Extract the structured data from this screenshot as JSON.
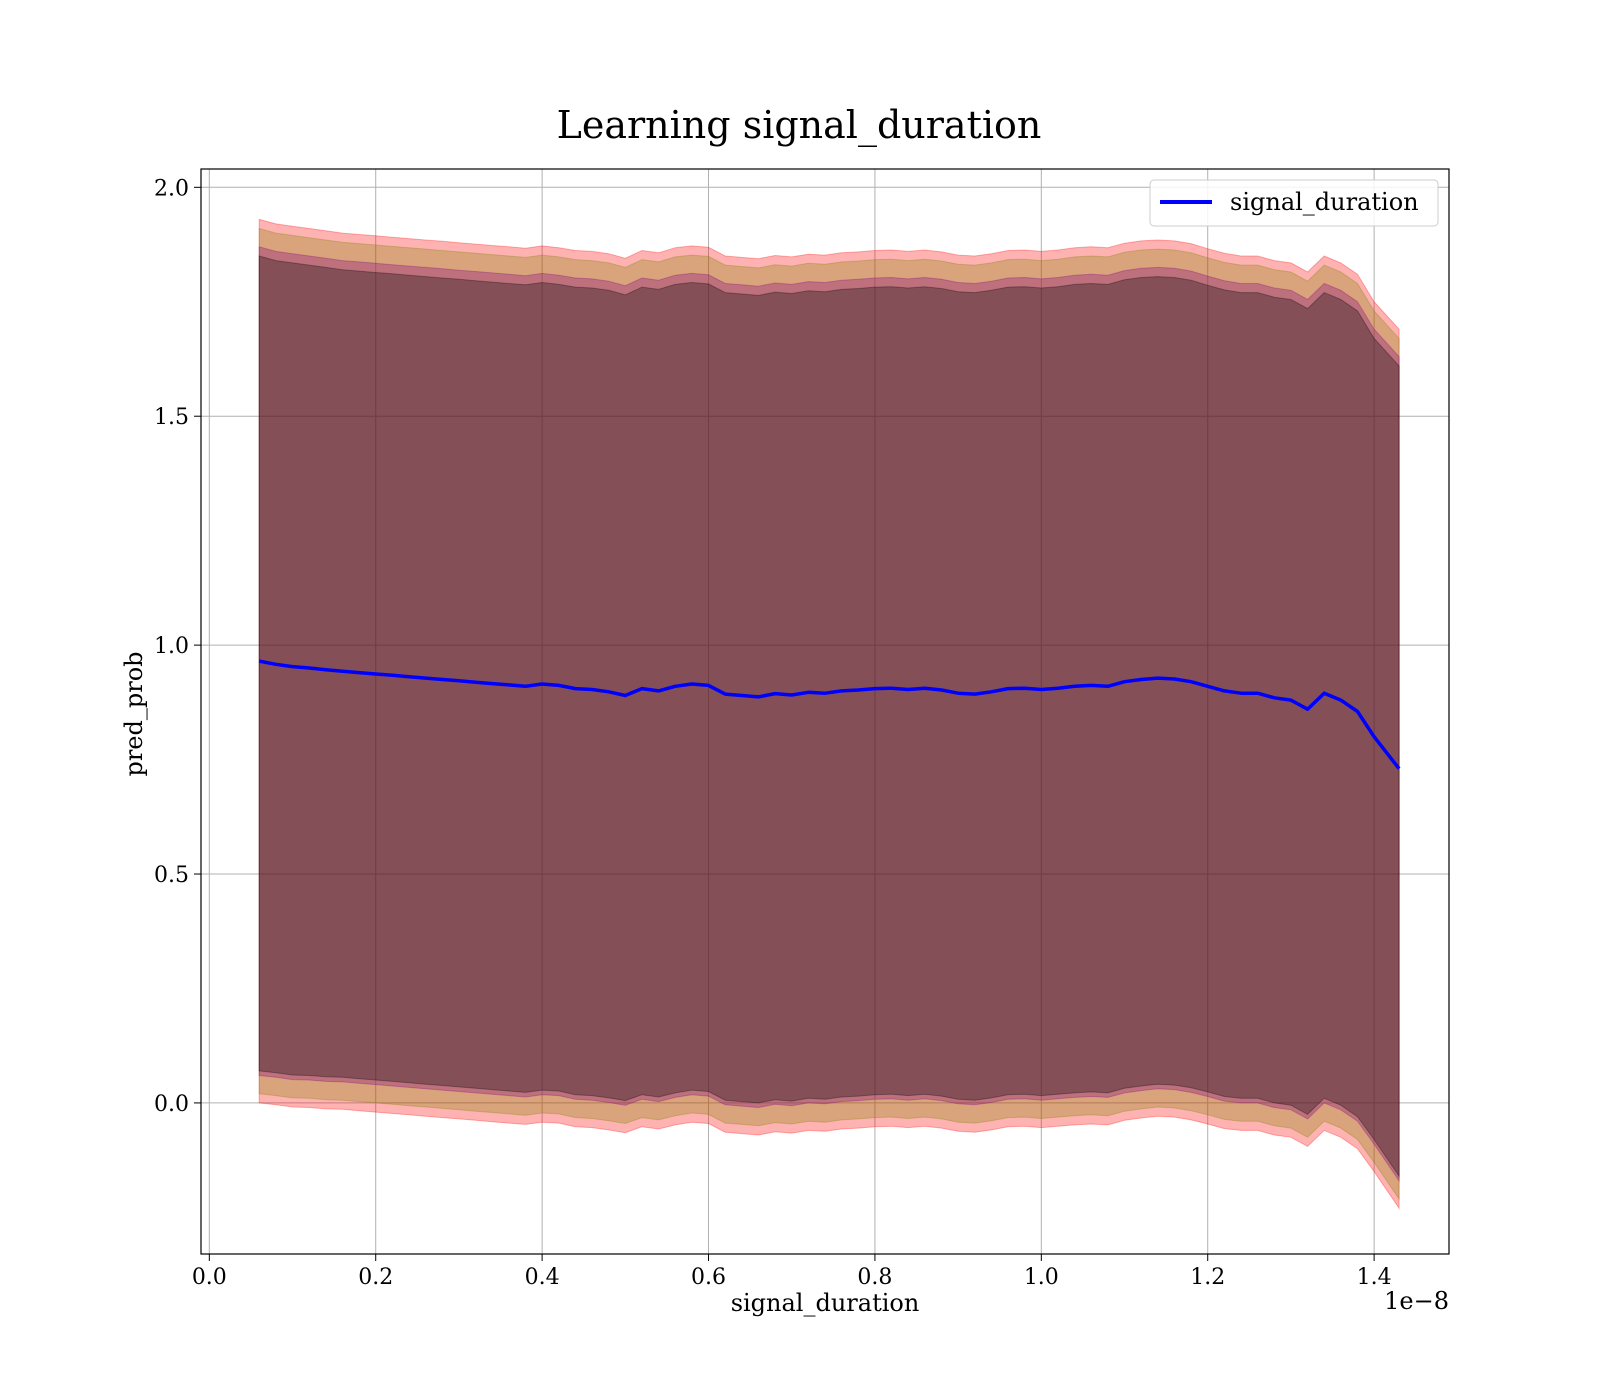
{
  "chart_data": {
    "type": "line",
    "title": "Learning signal_duration",
    "xlabel": "signal_duration",
    "ylabel": "pred_prob",
    "x_offset_text": "1e−8",
    "xlim": [
      -0.01,
      1.49
    ],
    "ylim": [
      -0.33,
      2.04
    ],
    "xticks": [
      0.0,
      0.2,
      0.4,
      0.6,
      0.8,
      1.0,
      1.2,
      1.4
    ],
    "xtick_labels": [
      "0.0",
      "0.2",
      "0.4",
      "0.6",
      "0.8",
      "1.0",
      "1.2",
      "1.4"
    ],
    "yticks": [
      0.0,
      0.5,
      1.0,
      1.5,
      2.0
    ],
    "ytick_labels": [
      "0.0",
      "0.5",
      "1.0",
      "1.5",
      "2.0"
    ],
    "grid": true,
    "legend": {
      "position": "top-right",
      "entries": [
        "signal_duration"
      ]
    },
    "series": [
      {
        "name": "signal_duration",
        "color": "#0000ff",
        "x": [
          0.06,
          0.08,
          0.1,
          0.12,
          0.14,
          0.16,
          0.18,
          0.2,
          0.22,
          0.24,
          0.26,
          0.28,
          0.3,
          0.32,
          0.34,
          0.36,
          0.38,
          0.4,
          0.42,
          0.44,
          0.46,
          0.48,
          0.5,
          0.52,
          0.54,
          0.56,
          0.58,
          0.6,
          0.62,
          0.64,
          0.66,
          0.68,
          0.7,
          0.72,
          0.74,
          0.76,
          0.78,
          0.8,
          0.82,
          0.84,
          0.86,
          0.88,
          0.9,
          0.92,
          0.94,
          0.96,
          0.98,
          1.0,
          1.02,
          1.04,
          1.06,
          1.08,
          1.1,
          1.12,
          1.14,
          1.16,
          1.18,
          1.2,
          1.22,
          1.24,
          1.26,
          1.28,
          1.3,
          1.32,
          1.34,
          1.36,
          1.38,
          1.4,
          1.43
        ],
        "values": [
          0.965,
          0.958,
          0.953,
          0.95,
          0.946,
          0.943,
          0.94,
          0.937,
          0.934,
          0.931,
          0.928,
          0.925,
          0.922,
          0.919,
          0.916,
          0.913,
          0.91,
          0.915,
          0.912,
          0.905,
          0.903,
          0.898,
          0.89,
          0.905,
          0.9,
          0.91,
          0.915,
          0.912,
          0.893,
          0.89,
          0.887,
          0.894,
          0.891,
          0.897,
          0.895,
          0.9,
          0.902,
          0.905,
          0.906,
          0.903,
          0.906,
          0.902,
          0.895,
          0.893,
          0.898,
          0.905,
          0.906,
          0.903,
          0.906,
          0.91,
          0.912,
          0.91,
          0.92,
          0.925,
          0.928,
          0.926,
          0.92,
          0.91,
          0.9,
          0.895,
          0.895,
          0.885,
          0.88,
          0.86,
          0.895,
          0.88,
          0.855,
          0.8,
          0.73
        ]
      }
    ],
    "bands": [
      {
        "color": "#ff0000",
        "opacity": 0.3,
        "upper": [
          1.93,
          1.92,
          1.915,
          1.91,
          1.905,
          1.9,
          1.897,
          1.894,
          1.891,
          1.888,
          1.885,
          1.882,
          1.879,
          1.876,
          1.873,
          1.87,
          1.867,
          1.872,
          1.868,
          1.862,
          1.86,
          1.855,
          1.845,
          1.862,
          1.857,
          1.868,
          1.872,
          1.869,
          1.85,
          1.847,
          1.844,
          1.851,
          1.848,
          1.854,
          1.852,
          1.857,
          1.859,
          1.862,
          1.863,
          1.86,
          1.863,
          1.859,
          1.852,
          1.85,
          1.855,
          1.862,
          1.863,
          1.86,
          1.863,
          1.868,
          1.87,
          1.868,
          1.878,
          1.883,
          1.885,
          1.883,
          1.877,
          1.866,
          1.856,
          1.85,
          1.85,
          1.84,
          1.835,
          1.815,
          1.85,
          1.835,
          1.81,
          1.75,
          1.69
        ],
        "lower": [
          0.0,
          -0.004,
          -0.009,
          -0.01,
          -0.013,
          -0.014,
          -0.017,
          -0.02,
          -0.023,
          -0.026,
          -0.029,
          -0.032,
          -0.035,
          -0.038,
          -0.041,
          -0.044,
          -0.047,
          -0.042,
          -0.044,
          -0.052,
          -0.054,
          -0.059,
          -0.065,
          -0.052,
          -0.057,
          -0.048,
          -0.042,
          -0.045,
          -0.064,
          -0.067,
          -0.07,
          -0.063,
          -0.066,
          -0.06,
          -0.062,
          -0.057,
          -0.055,
          -0.052,
          -0.051,
          -0.054,
          -0.051,
          -0.055,
          -0.062,
          -0.064,
          -0.059,
          -0.052,
          -0.051,
          -0.054,
          -0.051,
          -0.048,
          -0.046,
          -0.048,
          -0.038,
          -0.033,
          -0.029,
          -0.031,
          -0.037,
          -0.046,
          -0.056,
          -0.06,
          -0.06,
          -0.07,
          -0.075,
          -0.095,
          -0.06,
          -0.075,
          -0.1,
          -0.15,
          -0.23
        ]
      },
      {
        "color": "#808000",
        "opacity": 0.3,
        "upper": [
          1.91,
          1.9,
          1.895,
          1.89,
          1.885,
          1.88,
          1.877,
          1.874,
          1.871,
          1.868,
          1.865,
          1.862,
          1.859,
          1.856,
          1.853,
          1.85,
          1.847,
          1.852,
          1.848,
          1.842,
          1.84,
          1.835,
          1.825,
          1.842,
          1.837,
          1.848,
          1.852,
          1.849,
          1.83,
          1.827,
          1.824,
          1.831,
          1.828,
          1.834,
          1.832,
          1.837,
          1.839,
          1.842,
          1.843,
          1.84,
          1.843,
          1.839,
          1.832,
          1.83,
          1.835,
          1.842,
          1.843,
          1.84,
          1.843,
          1.848,
          1.85,
          1.848,
          1.858,
          1.863,
          1.865,
          1.863,
          1.857,
          1.846,
          1.836,
          1.83,
          1.83,
          1.82,
          1.815,
          1.795,
          1.83,
          1.815,
          1.79,
          1.73,
          1.67
        ],
        "lower": [
          0.02,
          0.016,
          0.011,
          0.01,
          0.007,
          0.006,
          0.003,
          0.0,
          -0.003,
          -0.006,
          -0.009,
          -0.012,
          -0.015,
          -0.018,
          -0.021,
          -0.024,
          -0.027,
          -0.022,
          -0.024,
          -0.032,
          -0.034,
          -0.039,
          -0.045,
          -0.032,
          -0.037,
          -0.028,
          -0.022,
          -0.025,
          -0.044,
          -0.047,
          -0.05,
          -0.043,
          -0.046,
          -0.04,
          -0.042,
          -0.037,
          -0.035,
          -0.032,
          -0.031,
          -0.034,
          -0.031,
          -0.035,
          -0.042,
          -0.044,
          -0.039,
          -0.032,
          -0.031,
          -0.034,
          -0.031,
          -0.028,
          -0.026,
          -0.028,
          -0.018,
          -0.013,
          -0.009,
          -0.011,
          -0.017,
          -0.026,
          -0.036,
          -0.04,
          -0.04,
          -0.05,
          -0.055,
          -0.075,
          -0.04,
          -0.055,
          -0.08,
          -0.13,
          -0.21
        ]
      },
      {
        "color": "#800080",
        "opacity": 0.3,
        "upper": [
          1.87,
          1.86,
          1.855,
          1.85,
          1.845,
          1.84,
          1.837,
          1.834,
          1.831,
          1.828,
          1.825,
          1.822,
          1.819,
          1.816,
          1.813,
          1.81,
          1.807,
          1.812,
          1.808,
          1.802,
          1.8,
          1.795,
          1.785,
          1.802,
          1.797,
          1.808,
          1.812,
          1.809,
          1.79,
          1.787,
          1.784,
          1.791,
          1.788,
          1.794,
          1.792,
          1.797,
          1.799,
          1.802,
          1.803,
          1.8,
          1.803,
          1.799,
          1.792,
          1.79,
          1.795,
          1.802,
          1.803,
          1.8,
          1.803,
          1.808,
          1.81,
          1.808,
          1.818,
          1.823,
          1.825,
          1.823,
          1.817,
          1.806,
          1.796,
          1.79,
          1.79,
          1.78,
          1.775,
          1.755,
          1.79,
          1.775,
          1.75,
          1.69,
          1.63
        ],
        "lower": [
          0.06,
          0.056,
          0.051,
          0.05,
          0.047,
          0.046,
          0.043,
          0.04,
          0.037,
          0.034,
          0.031,
          0.028,
          0.025,
          0.022,
          0.019,
          0.016,
          0.013,
          0.018,
          0.016,
          0.008,
          0.006,
          0.001,
          -0.005,
          0.008,
          0.003,
          0.012,
          0.018,
          0.015,
          -0.004,
          -0.007,
          -0.01,
          -0.003,
          -0.006,
          0.0,
          -0.002,
          0.003,
          0.005,
          0.008,
          0.009,
          0.006,
          0.009,
          0.005,
          -0.002,
          -0.004,
          0.001,
          0.008,
          0.009,
          0.006,
          0.009,
          0.012,
          0.014,
          0.012,
          0.022,
          0.027,
          0.031,
          0.029,
          0.023,
          0.014,
          0.004,
          0.0,
          0.0,
          -0.01,
          -0.015,
          -0.035,
          0.0,
          -0.015,
          -0.04,
          -0.09,
          -0.17
        ]
      },
      {
        "color": "#000000",
        "opacity": 0.3,
        "upper": [
          1.85,
          1.84,
          1.835,
          1.83,
          1.825,
          1.82,
          1.817,
          1.814,
          1.811,
          1.808,
          1.805,
          1.802,
          1.799,
          1.796,
          1.793,
          1.79,
          1.787,
          1.792,
          1.788,
          1.782,
          1.78,
          1.775,
          1.765,
          1.782,
          1.777,
          1.788,
          1.792,
          1.789,
          1.77,
          1.767,
          1.764,
          1.771,
          1.768,
          1.774,
          1.772,
          1.777,
          1.779,
          1.782,
          1.783,
          1.78,
          1.783,
          1.779,
          1.772,
          1.77,
          1.775,
          1.782,
          1.783,
          1.78,
          1.783,
          1.788,
          1.79,
          1.788,
          1.798,
          1.803,
          1.805,
          1.803,
          1.797,
          1.786,
          1.776,
          1.77,
          1.77,
          1.76,
          1.755,
          1.735,
          1.77,
          1.755,
          1.73,
          1.67,
          1.61
        ],
        "lower": [
          0.07,
          0.066,
          0.061,
          0.06,
          0.057,
          0.056,
          0.053,
          0.05,
          0.047,
          0.044,
          0.041,
          0.038,
          0.035,
          0.032,
          0.029,
          0.026,
          0.023,
          0.028,
          0.026,
          0.018,
          0.016,
          0.011,
          0.005,
          0.018,
          0.013,
          0.022,
          0.028,
          0.025,
          0.006,
          0.003,
          0.0,
          0.007,
          0.004,
          0.01,
          0.008,
          0.013,
          0.015,
          0.018,
          0.019,
          0.016,
          0.019,
          0.015,
          0.008,
          0.006,
          0.011,
          0.018,
          0.019,
          0.016,
          0.019,
          0.022,
          0.024,
          0.022,
          0.032,
          0.037,
          0.041,
          0.039,
          0.033,
          0.024,
          0.014,
          0.01,
          0.01,
          0.0,
          -0.005,
          -0.025,
          0.01,
          -0.005,
          -0.03,
          -0.08,
          -0.16
        ]
      }
    ]
  }
}
